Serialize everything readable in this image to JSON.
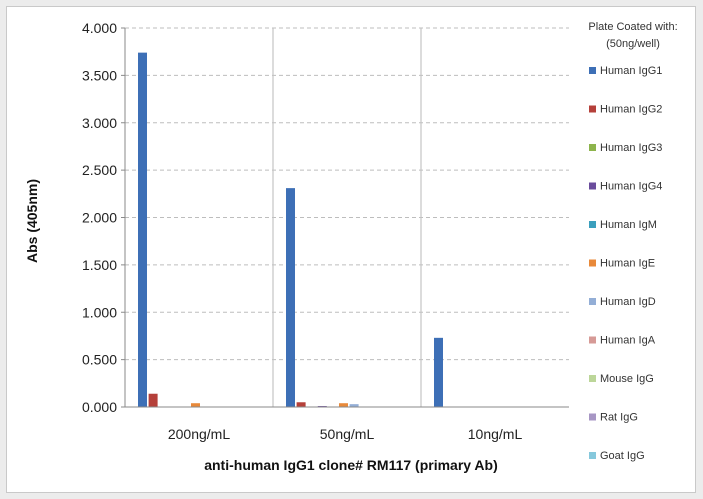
{
  "chart_data": {
    "type": "bar",
    "categories": [
      "200ng/mL",
      "50ng/mL",
      "10ng/mL"
    ],
    "series": [
      {
        "name": "Human IgG1",
        "color": "#3d6fb6",
        "values": [
          3.74,
          2.31,
          0.73
        ]
      },
      {
        "name": "Human IgG2",
        "color": "#b5403a",
        "values": [
          0.14,
          0.05,
          0.0
        ]
      },
      {
        "name": "Human IgG3",
        "color": "#8db44c",
        "values": [
          0.0,
          0.0,
          0.0
        ]
      },
      {
        "name": "Human IgG4",
        "color": "#6a4c9c",
        "values": [
          0.0,
          0.01,
          0.0
        ]
      },
      {
        "name": "Human IgM",
        "color": "#3b9fbd",
        "values": [
          0.0,
          0.0,
          0.0
        ]
      },
      {
        "name": "Human IgE",
        "color": "#e8893a",
        "values": [
          0.04,
          0.04,
          0.0
        ]
      },
      {
        "name": "Human IgD",
        "color": "#93aed6",
        "values": [
          0.0,
          0.03,
          0.0
        ]
      },
      {
        "name": "Human IgA",
        "color": "#d69a96",
        "values": [
          0.0,
          0.0,
          0.0
        ]
      },
      {
        "name": "Mouse IgG",
        "color": "#bcd699",
        "values": [
          0.0,
          0.0,
          0.0
        ]
      },
      {
        "name": "Rat IgG",
        "color": "#a796c4",
        "values": [
          0.0,
          0.0,
          0.0
        ]
      },
      {
        "name": "Goat IgG",
        "color": "#86c8dc",
        "values": [
          0.0,
          0.0,
          0.0
        ]
      }
    ],
    "yticks": [
      "0.000",
      "0.500",
      "1.000",
      "1.500",
      "2.000",
      "2.500",
      "3.000",
      "3.500",
      "4.000"
    ],
    "ylim": [
      0,
      4
    ],
    "ylabel": "Abs (405nm)",
    "xlabel": "anti-human IgG1 clone# RM117 (primary Ab)",
    "legend_title": "Plate Coated with:",
    "legend_subtitle": "(50ng/well)",
    "legend_position": "right",
    "grid": "horizontal dashed, vertical category separators"
  }
}
